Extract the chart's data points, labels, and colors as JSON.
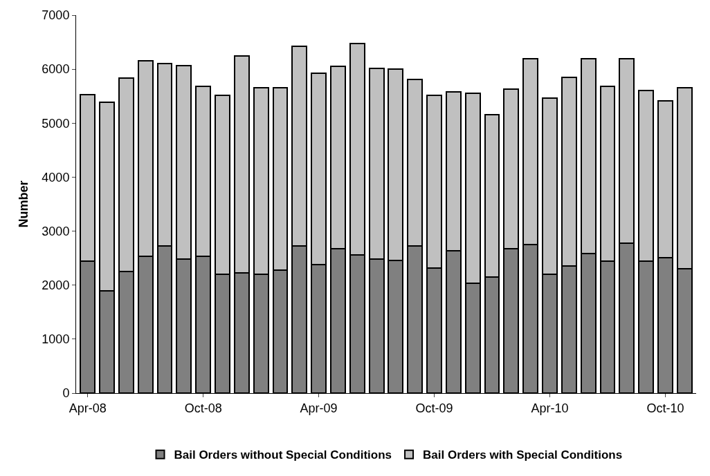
{
  "chart_data": {
    "type": "bar",
    "stacked": true,
    "ylabel": "Number",
    "ylim": [
      0,
      7000
    ],
    "yticks": [
      0,
      1000,
      2000,
      3000,
      4000,
      5000,
      6000,
      7000
    ],
    "legend": "bottom",
    "categories": [
      "Apr-08",
      null,
      null,
      null,
      null,
      null,
      "Oct-08",
      null,
      null,
      null,
      null,
      null,
      "Apr-09",
      null,
      null,
      null,
      null,
      null,
      "Oct-09",
      null,
      null,
      null,
      null,
      null,
      "Apr-10",
      null,
      null,
      null,
      null,
      null,
      "Oct-10",
      null
    ],
    "series": [
      {
        "name": "Bail Orders without Special Conditions",
        "color": "#808080",
        "values": [
          2450,
          1900,
          2250,
          2530,
          2720,
          2480,
          2530,
          2200,
          2230,
          2200,
          2280,
          2720,
          2380,
          2680,
          2560,
          2480,
          2460,
          2720,
          2310,
          2630,
          2030,
          2150,
          2680,
          2750,
          2200,
          2350,
          2580,
          2450,
          2780,
          2450,
          2510,
          2300
        ]
      },
      {
        "name": "Bail Orders with Special Conditions",
        "color": "#c0c0c0",
        "values": [
          3080,
          3490,
          3580,
          3620,
          3380,
          3590,
          3150,
          3310,
          4020,
          3450,
          3380,
          3710,
          3540,
          3370,
          3920,
          3530,
          3540,
          3090,
          3200,
          2950,
          3530,
          3010,
          2950,
          3450,
          3260,
          3500,
          3620,
          3230,
          3420,
          3150,
          2900,
          3350
        ]
      }
    ]
  }
}
